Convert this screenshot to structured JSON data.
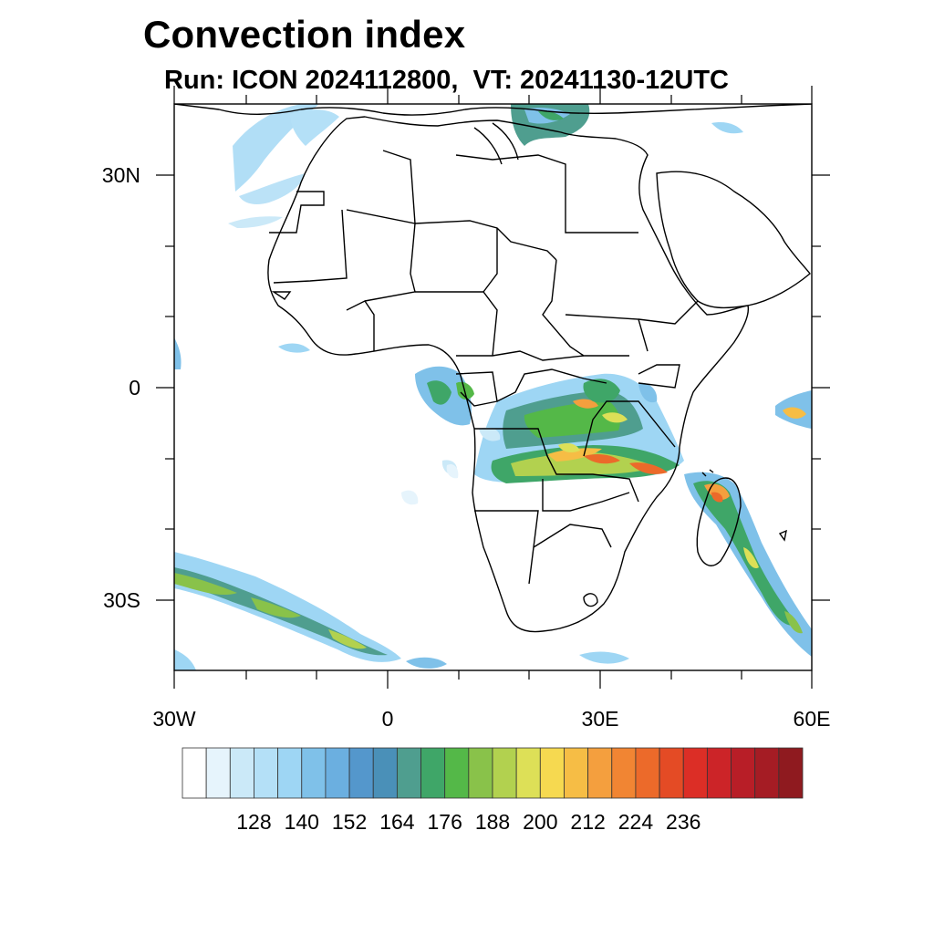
{
  "title": "Convection index",
  "subtitle": "Run: ICON 2024112800,  VT: 20241130-12UTC",
  "map": {
    "extent": {
      "lon": [
        -30,
        60
      ],
      "lat": [
        -40,
        40
      ]
    },
    "lat_labels": [
      "30N",
      "0",
      "30S"
    ],
    "lon_labels": [
      "30W",
      "0",
      "30E",
      "60E"
    ]
  },
  "colorbar": {
    "colors": [
      "#ffffff",
      "#e6f4fc",
      "#cbe9f8",
      "#b4e0f7",
      "#9ed6f4",
      "#7fc1e9",
      "#6bafe0",
      "#5497cc",
      "#4a90b8",
      "#4f9e8f",
      "#3fa668",
      "#54b848",
      "#89c24a",
      "#b2d14f",
      "#dde057",
      "#f6d950",
      "#f6bd45",
      "#f49f3e",
      "#f18533",
      "#ec6a2a",
      "#e44b25",
      "#dc2e26",
      "#cc2428",
      "#b81e27",
      "#a51c24",
      "#8f1a1f"
    ],
    "labels": [
      "128",
      "140",
      "152",
      "164",
      "176",
      "188",
      "200",
      "212",
      "224",
      "236"
    ]
  }
}
